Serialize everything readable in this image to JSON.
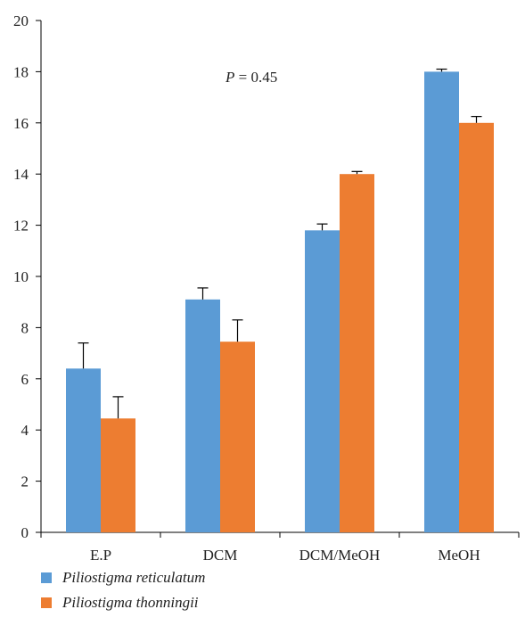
{
  "chart_data": {
    "type": "bar",
    "categories": [
      "E.P",
      "DCM",
      "DCM/MeOH",
      "MeOH"
    ],
    "series": [
      {
        "name": "Piliostigma reticulatum",
        "values": [
          6.4,
          9.1,
          11.8,
          18.0
        ],
        "errors": [
          1.0,
          0.45,
          0.25,
          0.1
        ],
        "color": "#5b9bd5"
      },
      {
        "name": "Piliostigma thonningii",
        "values": [
          4.45,
          7.45,
          14.0,
          16.0
        ],
        "errors": [
          0.85,
          0.85,
          0.1,
          0.25
        ],
        "color": "#ed7d31"
      }
    ],
    "ylim": [
      0,
      20
    ],
    "yticks": [
      "0",
      "2",
      "4",
      "6",
      "8",
      "10",
      "12",
      "14",
      "16",
      "18",
      "20"
    ],
    "annotation": {
      "symbol": "P",
      "text": " = 0.45"
    },
    "legend_position": "bottom-left",
    "grid": false
  }
}
